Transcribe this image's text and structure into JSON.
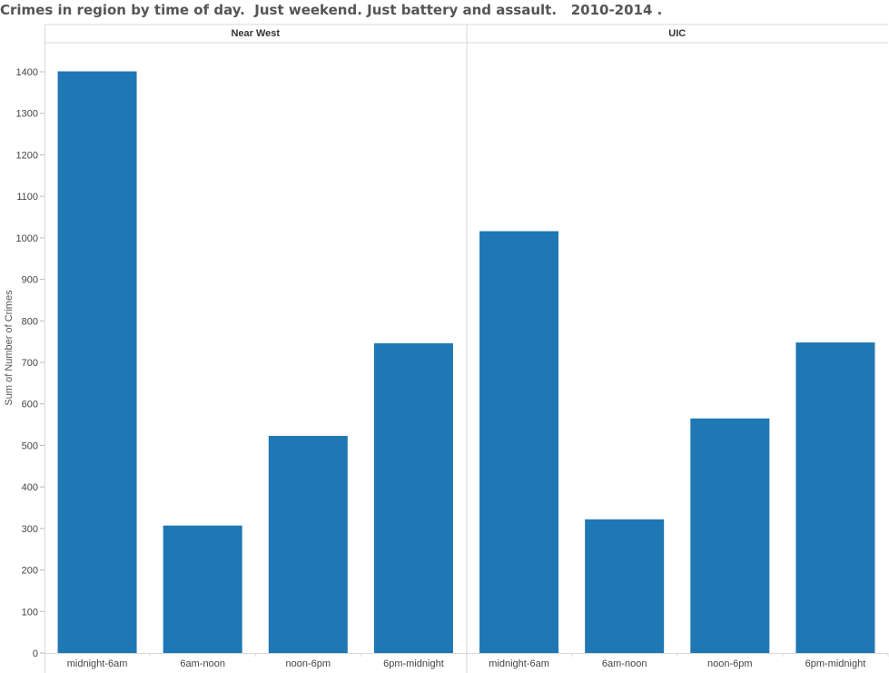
{
  "chart_data": {
    "type": "bar",
    "title": "Crimes in region by time of day.  Just weekend. Just battery and assault.   2010-2014 .",
    "ylabel": "Sum of Number of Crimes",
    "xlabel": "",
    "ylim": [
      0,
      1450
    ],
    "yticks": [
      0,
      100,
      200,
      300,
      400,
      500,
      600,
      700,
      800,
      900,
      1000,
      1100,
      1200,
      1300,
      1400
    ],
    "categories": [
      "midnight-6am",
      "6am-noon",
      "noon-6pm",
      "6pm-midnight"
    ],
    "panels": [
      {
        "name": "Near West",
        "values": [
          1401,
          307,
          523,
          746
        ]
      },
      {
        "name": "UIC",
        "values": [
          1016,
          322,
          565,
          748
        ]
      }
    ],
    "bar_color": "#1F77B4",
    "grid": false
  }
}
